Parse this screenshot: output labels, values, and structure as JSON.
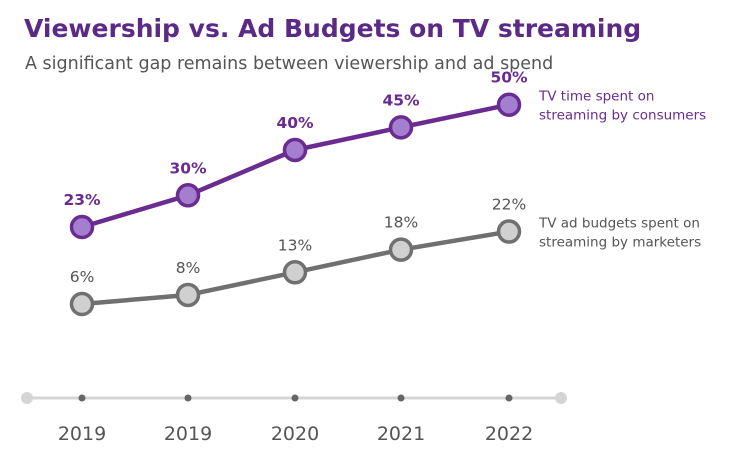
{
  "chart_data": {
    "type": "line",
    "title": "Viewership vs. Ad Budgets on TV streaming",
    "subtitle": "A significant gap remains between viewership and ad spend",
    "categories": [
      "2019",
      "2019",
      "2020",
      "2021",
      "2022"
    ],
    "series": [
      {
        "name": "TV time spent on streaming by consumers",
        "label_lines": [
          "TV time spent on",
          "streaming by consumers"
        ],
        "values": [
          23,
          30,
          40,
          45,
          50
        ],
        "labels": [
          "23%",
          "30%",
          "40%",
          "45%",
          "50%"
        ],
        "line_color": "#6a2c91",
        "marker_fill": "#a57fcf",
        "label_color": "#6a2c91"
      },
      {
        "name": "TV ad budgets spent on streaming by marketers",
        "label_lines": [
          "TV ad budgets spent on",
          "streaming by marketers"
        ],
        "values": [
          6,
          8,
          13,
          18,
          22
        ],
        "labels": [
          "6%",
          "8%",
          "13%",
          "18%",
          "22%"
        ],
        "line_color": "#707070",
        "marker_fill": "#d0d0d0",
        "label_color": "#555555"
      }
    ],
    "ylim": [
      0,
      55
    ],
    "unit": "%",
    "grid": false,
    "legend": "right, inline at line ends",
    "colors": {
      "title": "#5b2a86",
      "axis_line": "#d5d5d5",
      "axis_tick": "#666666",
      "tick_label": "#555555"
    }
  }
}
